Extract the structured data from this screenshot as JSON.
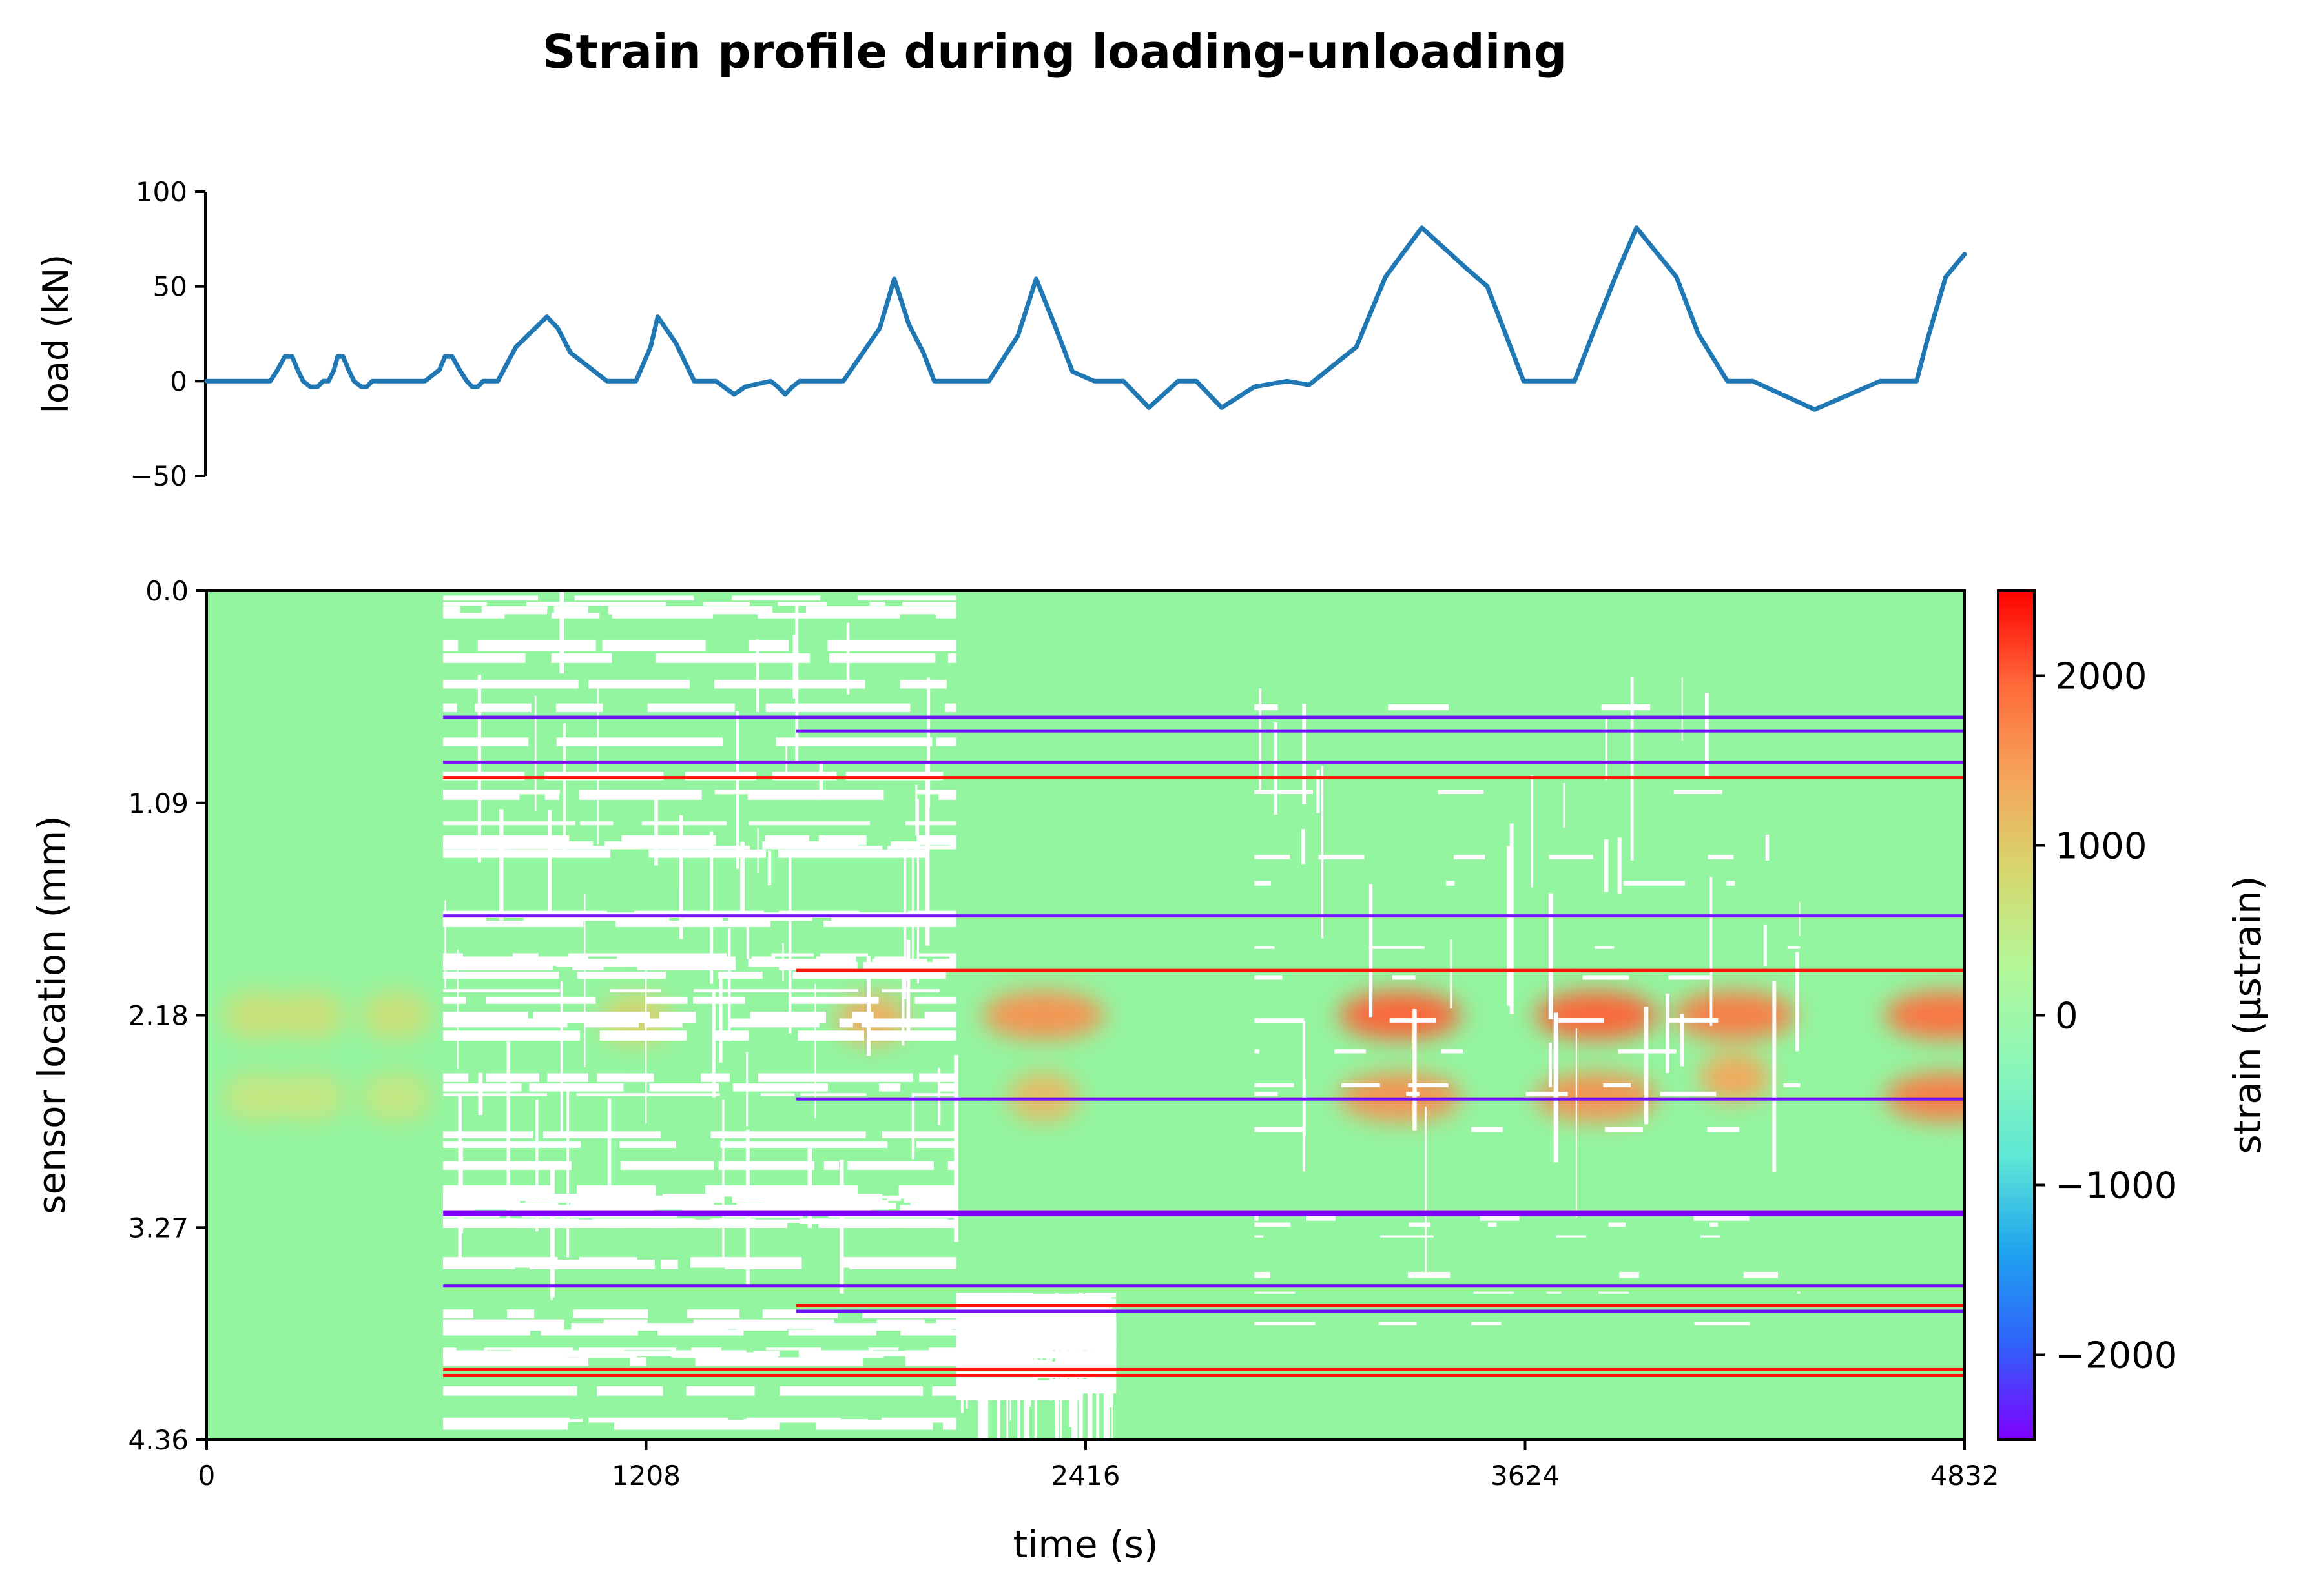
{
  "figure_title": "Strain profile during loading-unloading",
  "chart_data": [
    {
      "type": "line",
      "ylabel": "load (kN)",
      "xlabel": "",
      "xlim": [
        0,
        4832
      ],
      "ylim": [
        -50,
        100
      ],
      "yticks": [
        100,
        50,
        0,
        -50
      ],
      "ytick_labels": [
        "100",
        "50",
        "0",
        "−50"
      ],
      "grid": false,
      "line_color": "#1f77b4",
      "x": [
        0,
        120,
        160,
        175,
        195,
        215,
        235,
        250,
        265,
        285,
        305,
        320,
        335,
        350,
        360,
        375,
        390,
        405,
        425,
        440,
        455,
        470,
        480,
        520,
        600,
        640,
        655,
        675,
        695,
        715,
        730,
        745,
        760,
        780,
        800,
        850,
        935,
        965,
        1000,
        1100,
        1180,
        1220,
        1240,
        1290,
        1340,
        1370,
        1400,
        1450,
        1480,
        1550,
        1570,
        1590,
        1610,
        1630,
        1650,
        1670,
        1750,
        1850,
        1890,
        1930,
        1970,
        2000,
        2050,
        2120,
        2150,
        2230,
        2280,
        2330,
        2380,
        2440,
        2520,
        2590,
        2670,
        2720,
        2790,
        2880,
        2970,
        3030,
        3160,
        3240,
        3340,
        3460,
        3520,
        3570,
        3620,
        3660,
        3700,
        3760,
        3810,
        3870,
        3930,
        4040,
        4100,
        4180,
        4250,
        4420,
        4600,
        4640,
        4700,
        4730,
        4780,
        4832
      ],
      "y": [
        0,
        0,
        0,
        0,
        6,
        13,
        13,
        6,
        0,
        -3,
        -3,
        0,
        0,
        6,
        13,
        13,
        6,
        0,
        -3,
        -3,
        0,
        0,
        0,
        0,
        0,
        6,
        13,
        13,
        6,
        0,
        -3,
        -3,
        0,
        0,
        0,
        18,
        34,
        28,
        15,
        0,
        0,
        18,
        34,
        20,
        0,
        0,
        0,
        -7,
        -3,
        0,
        -3,
        -7,
        -3,
        0,
        0,
        0,
        0,
        28,
        54,
        30,
        15,
        0,
        0,
        0,
        0,
        24,
        54,
        30,
        5,
        0,
        0,
        -14,
        0,
        0,
        -14,
        -3,
        0,
        -2,
        18,
        55,
        81,
        60,
        50,
        25,
        0,
        0,
        0,
        0,
        25,
        54,
        81,
        55,
        25,
        0,
        0,
        -15,
        0,
        0,
        0,
        22,
        55,
        67
      ],
      "xticks": [
        0,
        1208,
        2416,
        3624,
        4832
      ]
    },
    {
      "type": "heatmap",
      "xlabel": "time (s)",
      "ylabel": "sensor location (mm)",
      "xlim": [
        0,
        4832
      ],
      "ylim": [
        4.36,
        0.0
      ],
      "xticks": [
        0,
        1208,
        2416,
        3624,
        4832
      ],
      "xtick_labels": [
        "0",
        "1208",
        "2416",
        "3624",
        "4832"
      ],
      "yticks": [
        0.0,
        1.09,
        2.18,
        3.27,
        4.36
      ],
      "ytick_labels": [
        "0.0",
        "1.09",
        "2.18",
        "3.27",
        "4.36"
      ],
      "colormap": "rainbow",
      "colorbar": {
        "label": "strain (µstrain)",
        "vmin": -2500,
        "vmax": 2500,
        "ticks": [
          2000,
          1000,
          0,
          -1000,
          -2000
        ],
        "tick_labels": [
          "2000",
          "1000",
          "0",
          "−1000",
          "−2000"
        ],
        "colors": [
          "#7f00ff",
          "#3061fa",
          "#1fa3ef",
          "#5ee7d5",
          "#8df7b8",
          "#b3f798",
          "#d6d86f",
          "#f5a65c",
          "#ff6a3b",
          "#ff0000"
        ]
      },
      "background_color": "#94f5a0",
      "missing_color": "#ffffff",
      "missing_data_regions": [
        {
          "t_start": 650,
          "t_end": 2060,
          "loc_start": 0.0,
          "loc_end": 4.36,
          "density": "heavy"
        },
        {
          "t_start": 2060,
          "t_end": 2500,
          "loc_start": 3.6,
          "loc_end": 4.1,
          "density": "heavy"
        },
        {
          "t_start": 2880,
          "t_end": 4380,
          "loc_start": 0.3,
          "loc_end": 3.8,
          "density": "sparse"
        }
      ],
      "bands": [
        {
          "loc": 0.65,
          "value": -2400,
          "t_start": 650,
          "t_end": 4832
        },
        {
          "loc": 0.72,
          "value": -2400,
          "t_start": 1620,
          "t_end": 4832
        },
        {
          "loc": 0.88,
          "value": -2400,
          "t_start": 650,
          "t_end": 4832
        },
        {
          "loc": 0.96,
          "value": 2400,
          "t_start": 650,
          "t_end": 4832
        },
        {
          "loc": 1.67,
          "value": -2400,
          "t_start": 650,
          "t_end": 4832
        },
        {
          "loc": 1.95,
          "value": 2400,
          "t_start": 1620,
          "t_end": 4832
        },
        {
          "loc": 2.61,
          "value": -2400,
          "t_start": 1620,
          "t_end": 4832
        },
        {
          "loc": 3.19,
          "value": -2500,
          "t_start": 650,
          "t_end": 4832
        },
        {
          "loc": 3.57,
          "value": -2400,
          "t_start": 650,
          "t_end": 4832
        },
        {
          "loc": 3.67,
          "value": 2400,
          "t_start": 1620,
          "t_end": 4832
        },
        {
          "loc": 3.7,
          "value": -2400,
          "t_start": 1620,
          "t_end": 4832
        },
        {
          "loc": 4.0,
          "value": 2400,
          "t_start": 650,
          "t_end": 4832
        },
        {
          "loc": 4.03,
          "value": 2400,
          "t_start": 650,
          "t_end": 4832
        }
      ],
      "hotspots": [
        {
          "t_center": 140,
          "loc_center": 2.18,
          "value": 700
        },
        {
          "t_center": 285,
          "loc_center": 2.18,
          "value": 700
        },
        {
          "t_center": 520,
          "loc_center": 2.18,
          "value": 700
        },
        {
          "t_center": 140,
          "loc_center": 2.6,
          "value": 600
        },
        {
          "t_center": 285,
          "loc_center": 2.6,
          "value": 600
        },
        {
          "t_center": 520,
          "loc_center": 2.6,
          "value": 600
        },
        {
          "t_center": 1180,
          "loc_center": 2.2,
          "value": 900
        },
        {
          "t_center": 1830,
          "loc_center": 2.2,
          "value": 1300
        },
        {
          "t_center": 2300,
          "loc_center": 2.18,
          "value": 1600
        },
        {
          "t_center": 2300,
          "loc_center": 2.6,
          "value": 1200
        },
        {
          "t_center": 3280,
          "loc_center": 2.18,
          "value": 2000
        },
        {
          "t_center": 3280,
          "loc_center": 2.6,
          "value": 1600
        },
        {
          "t_center": 3820,
          "loc_center": 2.18,
          "value": 2000
        },
        {
          "t_center": 3820,
          "loc_center": 2.6,
          "value": 1600
        },
        {
          "t_center": 4200,
          "loc_center": 2.18,
          "value": 1800
        },
        {
          "t_center": 4200,
          "loc_center": 2.5,
          "value": 1400
        },
        {
          "t_center": 4780,
          "loc_center": 2.18,
          "value": 1900
        },
        {
          "t_center": 4780,
          "loc_center": 2.6,
          "value": 1800
        }
      ]
    }
  ]
}
